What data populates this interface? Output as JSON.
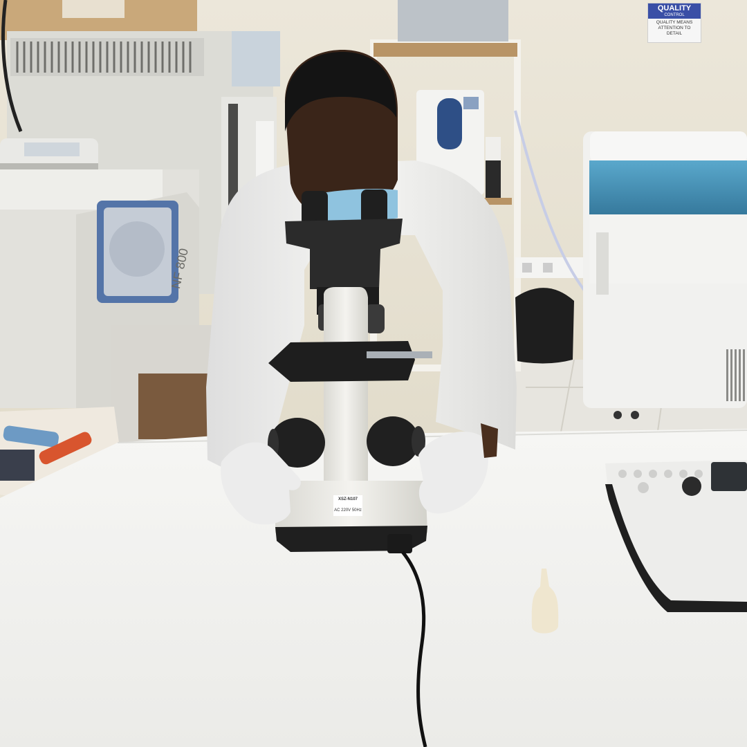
{
  "photo": {
    "colors": {
      "wall": "#e9e4d6",
      "bench": "#f3f3f1",
      "coat": "#f2f2f0",
      "microscope_body": "#ecebe6",
      "microscope_dark": "#2b2b2b",
      "mask": "#8fc3df",
      "skin": "#3a2519",
      "analyzer_blue": "#3f8fb5",
      "sign_blue": "#3a4fa6"
    },
    "signage": {
      "title": "QUALITY",
      "subtitle": "CONTROL",
      "line1": "QUALITY MEANS",
      "line2": "ATTENTION TO",
      "line3": "DETAIL"
    },
    "centrifuge_label": "NF 800",
    "microscope_label": {
      "model": "XSZ-N107",
      "power": "AC 220V 50Hz"
    }
  }
}
